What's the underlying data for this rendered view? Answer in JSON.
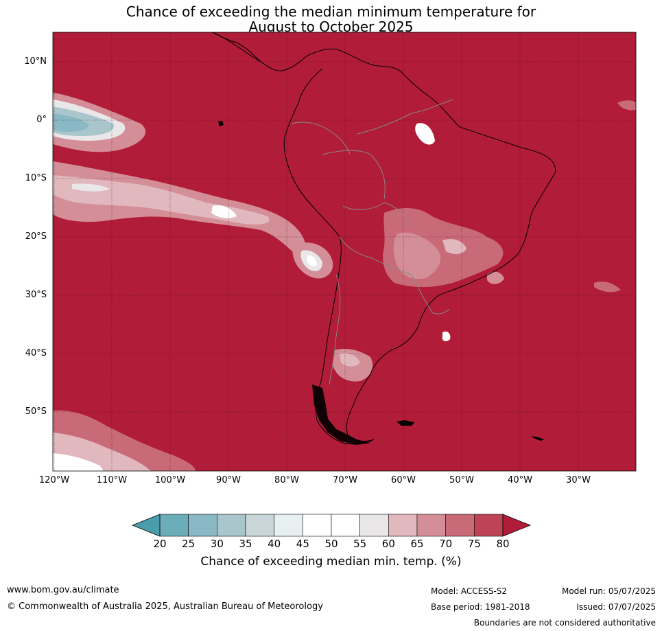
{
  "title": {
    "line1": "Chance of exceeding the median minimum temperature for",
    "line2": "August to October 2025"
  },
  "map": {
    "background_color": "#B11C38",
    "lat_labels": [
      "10°N",
      "0°",
      "10°S",
      "20°S",
      "30°S",
      "40°S",
      "50°S"
    ],
    "lon_labels": [
      "120°W",
      "110°W",
      "100°W",
      "90°W",
      "80°W",
      "70°W",
      "60°W",
      "50°W",
      "40°W",
      "30°W"
    ]
  },
  "colorbar": {
    "ticks": [
      "20",
      "25",
      "30",
      "35",
      "40",
      "45",
      "50",
      "55",
      "60",
      "65",
      "70",
      "75",
      "80"
    ],
    "colors": [
      "#6BADB9",
      "#8AB8C5",
      "#A8C6CC",
      "#C9D7DA",
      "#E8EFF1",
      "#FFFFFF",
      "#FFFFFF",
      "#EAE7E8",
      "#E1B8BE",
      "#D48E98",
      "#C96A78",
      "#BE4455"
    ],
    "low_extend_color": "#4A9DAB",
    "high_extend_color": "#B11C38",
    "label": "Chance of exceeding median min. temp. (%)"
  },
  "footer": {
    "url": "www.bom.gov.au/climate",
    "copyright": "© Commonwealth of Australia 2025, Australian Bureau of Meteorology",
    "model": "Model: ACCESS-S2",
    "base_period": "Base period: 1981-2018",
    "model_run": "Model run: 05/07/2025",
    "issued": "Issued: 07/07/2025",
    "disclaimer": "Boundaries are not considered authoritative"
  }
}
